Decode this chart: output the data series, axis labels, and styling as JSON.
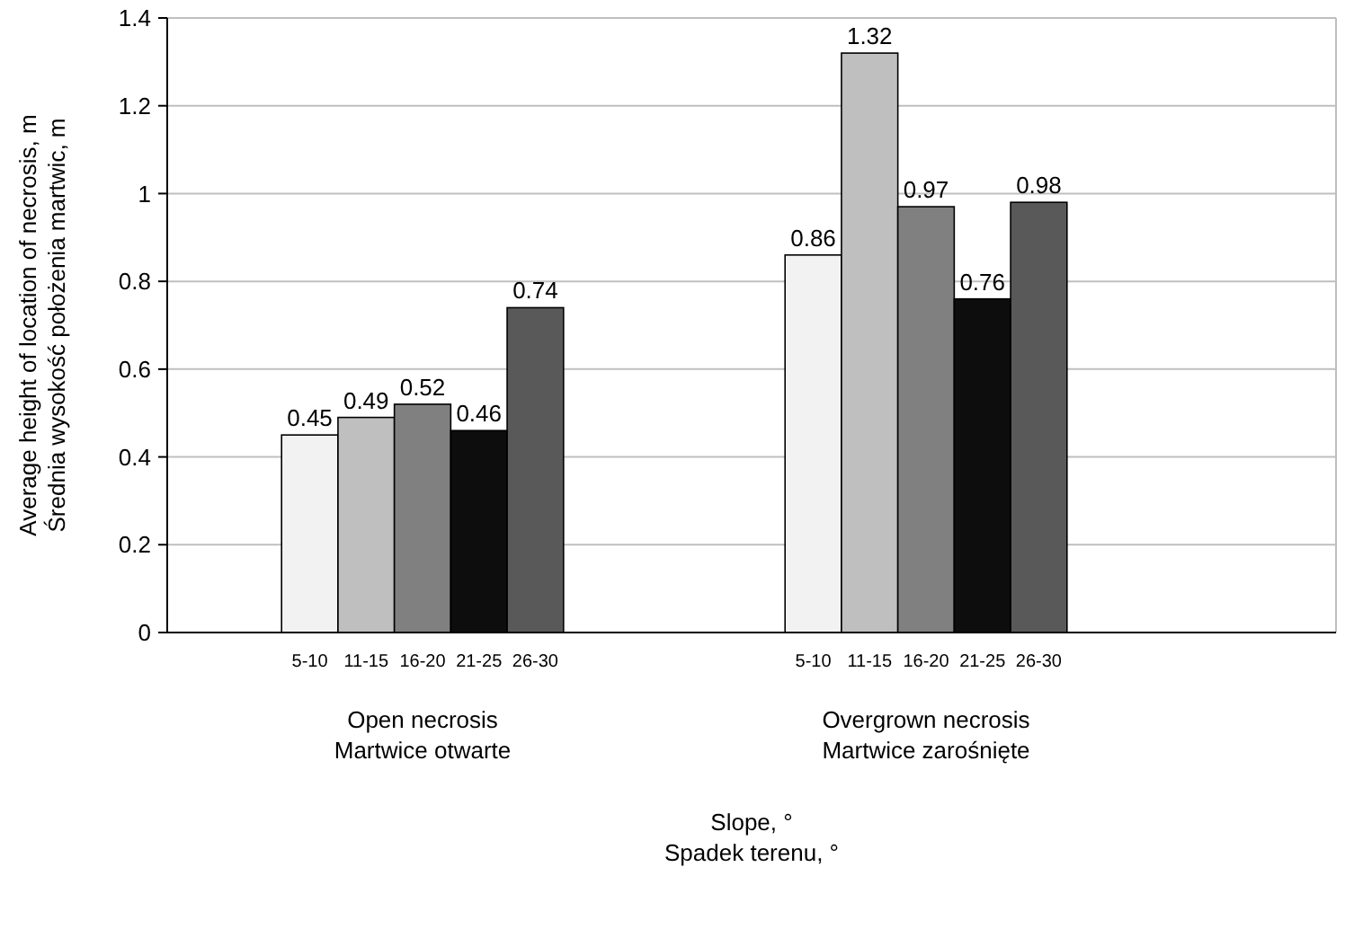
{
  "chart_data": {
    "type": "bar",
    "xlabel": "Slope, °\nSpadek terenu, °",
    "ylabel": "Average height of location of necrosis, m\nŚrednia wysokość położenia martwic, m",
    "categories": [
      "Open necrosis\nMartwice otwarte",
      "Overgrown necrosis\nMartwice zarośnięte"
    ],
    "series": [
      {
        "name": "5-10",
        "color": "#f2f2f2",
        "values": [
          0.45,
          0.86
        ]
      },
      {
        "name": "11-15",
        "color": "#bfbfbf",
        "values": [
          0.49,
          1.32
        ]
      },
      {
        "name": "16-20",
        "color": "#808080",
        "values": [
          0.52,
          0.97
        ]
      },
      {
        "name": "21-25",
        "color": "#0d0d0d",
        "values": [
          0.46,
          0.76
        ]
      },
      {
        "name": "26-30",
        "color": "#595959",
        "values": [
          0.74,
          0.98
        ]
      }
    ],
    "ylim": [
      0,
      1.4
    ],
    "yticks": [
      0,
      0.2,
      0.4,
      0.6,
      0.8,
      1,
      1.2,
      1.4
    ],
    "grid": "y",
    "data_labels": true
  }
}
